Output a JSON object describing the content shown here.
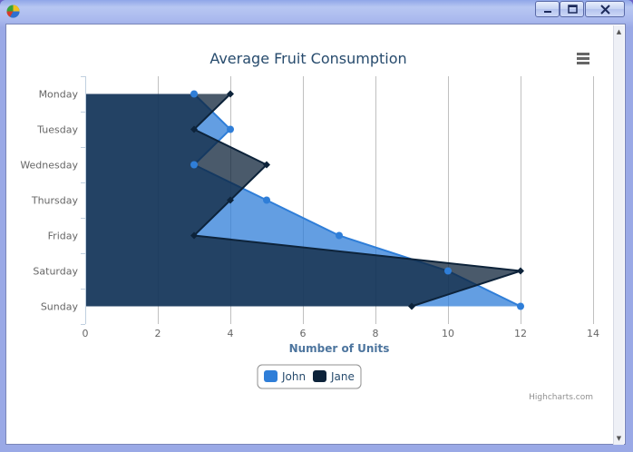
{
  "window": {
    "icon": "pie-chart-app-icon",
    "buttons": [
      "minimize-icon",
      "maximize-icon",
      "close-icon"
    ]
  },
  "menu_icon": "hamburger-menu-icon",
  "credits": "Highcharts.com",
  "colors": {
    "john": "#2f7ed8",
    "jane": "#0d233a",
    "title": "#274b6d",
    "axis_title": "#4d759e",
    "label": "#666666",
    "grid": "#c0c0c0"
  },
  "chart_data": {
    "type": "area",
    "inverted": true,
    "title": "Average Fruit Consumption",
    "categories": [
      "Monday",
      "Tuesday",
      "Wednesday",
      "Thursday",
      "Friday",
      "Saturday",
      "Sunday"
    ],
    "series": [
      {
        "name": "John",
        "values": [
          3,
          4,
          3,
          5,
          7,
          10,
          12
        ]
      },
      {
        "name": "Jane",
        "values": [
          4,
          3,
          5,
          4,
          3,
          12,
          9
        ]
      }
    ],
    "value_axis": {
      "title": "Number of Units",
      "min": 0,
      "max": 14,
      "ticks": [
        "0",
        "2",
        "4",
        "6",
        "8",
        "10",
        "12",
        "14"
      ]
    },
    "grid": true,
    "legend": "bottom-center"
  }
}
